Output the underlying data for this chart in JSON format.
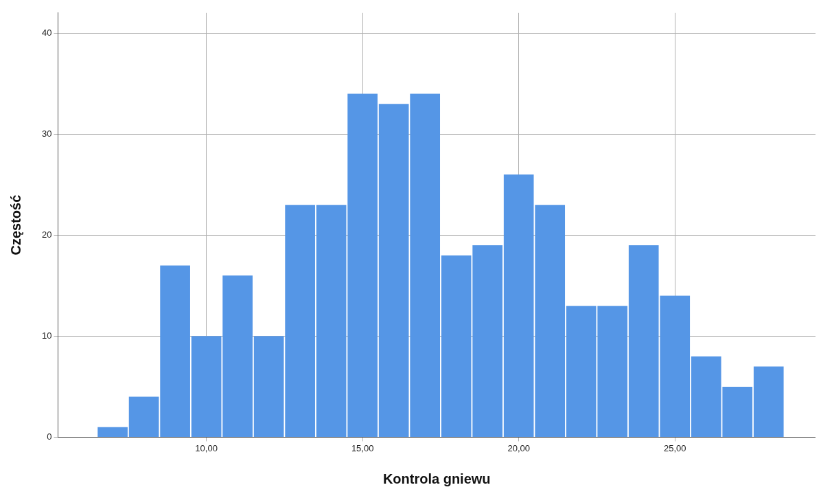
{
  "chart_data": {
    "type": "histogram",
    "xlabel": "Kontrola gniewu",
    "ylabel": "Częstość",
    "bins": [
      6.5,
      7.5,
      8.5,
      9.5,
      10.5,
      11.5,
      12.5,
      13.5,
      14.5,
      15.5,
      16.5,
      17.5,
      18.5,
      19.5,
      20.5,
      21.5,
      22.5,
      23.5,
      24.5,
      25.5,
      26.5,
      27.5,
      28.5
    ],
    "values": [
      1,
      4,
      17,
      10,
      16,
      10,
      23,
      23,
      34,
      33,
      34,
      18,
      19,
      26,
      23,
      13,
      13,
      19,
      14,
      8,
      5,
      7
    ],
    "color": "#5596e6",
    "xlim": [
      5.25,
      29.5
    ],
    "xticks": [
      {
        "value": 10,
        "label": "10,00"
      },
      {
        "value": 15,
        "label": "15,00"
      },
      {
        "value": 20,
        "label": "20,00"
      },
      {
        "value": 25,
        "label": "25,00"
      }
    ],
    "ylim": [
      0,
      42
    ],
    "yticks": [
      0,
      10,
      20,
      30,
      40
    ],
    "grid": true
  }
}
